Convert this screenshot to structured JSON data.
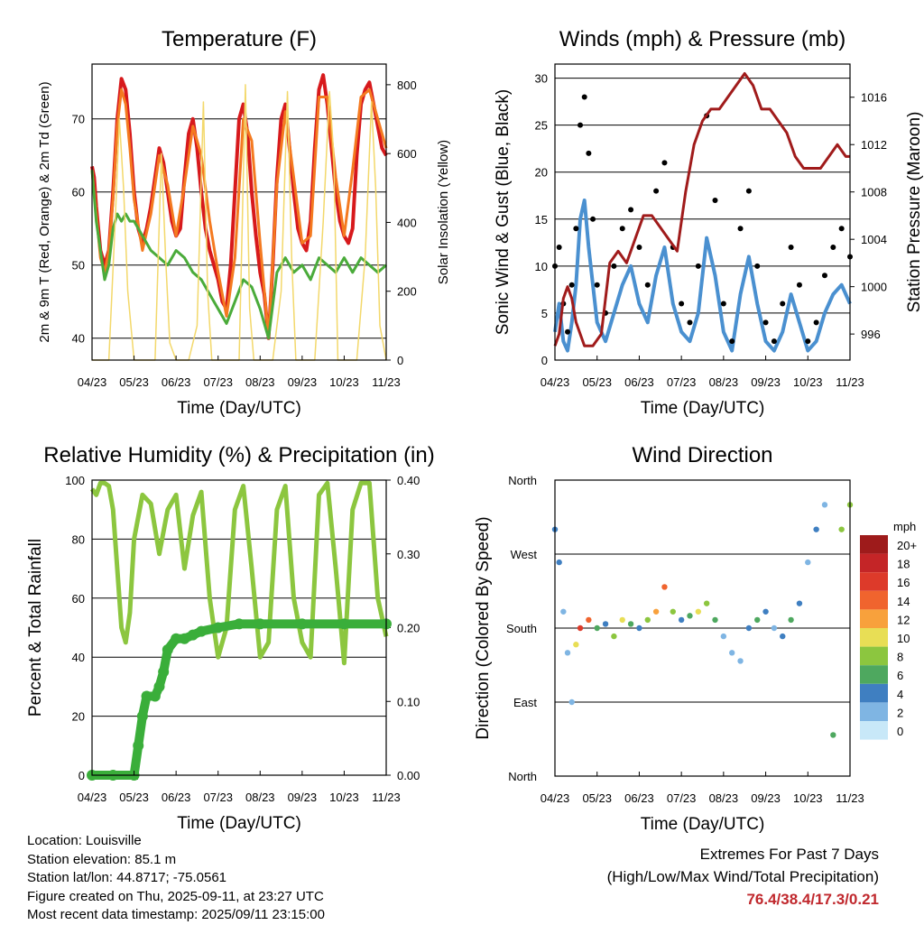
{
  "x_ticks": [
    "04/23",
    "05/23",
    "06/23",
    "07/23",
    "08/23",
    "09/23",
    "10/23",
    "11/23"
  ],
  "colors": {
    "temp2m": "#d7191c",
    "temp9m": "#f47a20",
    "dewpoint": "#4aab3a",
    "solar": "#f3d86b",
    "wind": "#4a90d0",
    "gust": "#000000",
    "pressure": "#a01b1b",
    "rh": "#8cc63f",
    "precip": "#3aae3a"
  },
  "chart_data": [
    {
      "type": "line",
      "title": "Temperature (F)",
      "xlabel": "Time (Day/UTC)",
      "ylabel": "2m & 9m T (Red, Orange) & 2m Td (Green)",
      "ylabel_right": "Solar Insolation (Yellow)",
      "ylim": [
        37,
        77.5
      ],
      "yticks": [
        40,
        50,
        60,
        70
      ],
      "ylim_right": [
        0,
        860
      ],
      "yticks_right": [
        0,
        200,
        400,
        600,
        800
      ],
      "series": [
        {
          "key": "temp2m",
          "x": [
            0,
            0.05,
            0.1,
            0.2,
            0.3,
            0.4,
            0.5,
            0.6,
            0.7,
            0.8,
            0.9,
            1.0,
            1.1,
            1.2,
            1.3,
            1.4,
            1.5,
            1.6,
            1.7,
            1.8,
            1.9,
            2.0,
            2.1,
            2.2,
            2.3,
            2.4,
            2.5,
            2.6,
            2.7,
            2.8,
            2.9,
            3.0,
            3.1,
            3.2,
            3.3,
            3.4,
            3.5,
            3.6,
            3.7,
            3.8,
            3.9,
            4.0,
            4.1,
            4.2,
            4.3,
            4.4,
            4.5,
            4.6,
            4.7,
            4.8,
            4.9,
            5.0,
            5.1,
            5.2,
            5.3,
            5.4,
            5.5,
            5.6,
            5.7,
            5.8,
            5.9,
            6.0,
            6.1,
            6.2,
            6.3,
            6.4,
            6.5,
            6.6,
            6.7,
            6.8,
            6.9,
            7.0
          ],
          "y": [
            63.5,
            62,
            58,
            52,
            50,
            52,
            60,
            70,
            75.5,
            74,
            68,
            60,
            55,
            53,
            55,
            58,
            62,
            66,
            64,
            60,
            56,
            54,
            55,
            62,
            68,
            70,
            66,
            60,
            55,
            52,
            50,
            48,
            45,
            44,
            50,
            60,
            70,
            72,
            68,
            60,
            54,
            49,
            46,
            40,
            50,
            62,
            70,
            72,
            66,
            60,
            55,
            53,
            52,
            56,
            66,
            74,
            76,
            72,
            66,
            60,
            56,
            54,
            53,
            55,
            65,
            72,
            74,
            75,
            72,
            69,
            66,
            65
          ]
        },
        {
          "key": "temp9m",
          "x": [
            0,
            0.1,
            0.2,
            0.3,
            0.4,
            0.5,
            0.6,
            0.7,
            0.8,
            0.9,
            1.0,
            1.2,
            1.4,
            1.6,
            1.8,
            2.0,
            2.2,
            2.4,
            2.6,
            2.8,
            3.0,
            3.2,
            3.4,
            3.6,
            3.8,
            4.0,
            4.2,
            4.4,
            4.6,
            4.8,
            5.0,
            5.2,
            5.4,
            5.6,
            5.8,
            6.0,
            6.2,
            6.4,
            6.6,
            6.8,
            7.0
          ],
          "y": [
            63,
            57,
            51,
            49,
            52,
            59,
            69,
            74,
            72,
            66,
            59,
            52,
            57,
            65,
            61,
            54,
            61,
            69,
            65,
            56,
            49,
            43,
            51,
            70,
            67,
            53,
            40,
            61,
            71,
            62,
            53,
            54,
            73,
            73,
            62,
            54,
            63,
            73,
            74,
            70,
            66
          ]
        },
        {
          "key": "dewpoint",
          "x": [
            0,
            0.1,
            0.2,
            0.3,
            0.4,
            0.5,
            0.6,
            0.7,
            0.8,
            0.9,
            1.0,
            1.2,
            1.4,
            1.6,
            1.8,
            2.0,
            2.2,
            2.4,
            2.6,
            2.8,
            3.0,
            3.2,
            3.4,
            3.6,
            3.8,
            4.0,
            4.2,
            4.4,
            4.6,
            4.8,
            5.0,
            5.2,
            5.4,
            5.6,
            5.8,
            6.0,
            6.2,
            6.4,
            6.6,
            6.8,
            7.0
          ],
          "y": [
            63,
            56,
            52,
            48,
            50,
            55,
            57,
            56,
            57,
            56,
            56,
            54,
            52,
            51,
            50,
            52,
            51,
            49,
            48,
            46,
            44,
            42,
            45,
            48,
            47,
            44,
            40,
            49,
            51,
            49,
            50,
            48,
            51,
            50,
            49,
            51,
            49,
            51,
            50,
            49,
            50
          ]
        },
        {
          "key": "solar",
          "x": [
            0,
            0.2,
            0.4,
            0.55,
            0.65,
            0.75,
            0.85,
            1.0,
            1.3,
            1.5,
            1.65,
            1.75,
            1.85,
            2.0,
            2.3,
            2.5,
            2.65,
            2.75,
            2.85,
            3.0,
            3.3,
            3.5,
            3.65,
            3.75,
            3.85,
            4.0,
            4.3,
            4.5,
            4.65,
            4.75,
            4.85,
            5.0,
            5.3,
            5.5,
            5.65,
            5.75,
            5.85,
            6.0,
            6.3,
            6.5,
            6.65,
            6.75,
            6.85,
            7.0
          ],
          "y": [
            0,
            0,
            0,
            400,
            700,
            500,
            200,
            0,
            0,
            0,
            600,
            300,
            50,
            0,
            0,
            100,
            750,
            200,
            0,
            0,
            0,
            0,
            800,
            150,
            0,
            0,
            0,
            200,
            780,
            300,
            0,
            0,
            0,
            400,
            780,
            600,
            0,
            0,
            0,
            300,
            750,
            500,
            100,
            0
          ]
        }
      ]
    },
    {
      "type": "scatter",
      "title": "Winds (mph) & Pressure (mb)",
      "xlabel": "Time (Day/UTC)",
      "ylabel": "Sonic Wind & Gust (Blue, Black)",
      "ylabel_right": "Station Pressure (Maroon)",
      "ylim": [
        0,
        31.5
      ],
      "yticks": [
        0,
        5,
        10,
        15,
        20,
        25,
        30
      ],
      "ylim_right": [
        993.8,
        1018.8
      ],
      "yticks_right": [
        996,
        1000,
        1004,
        1008,
        1012,
        1016
      ],
      "series": [
        {
          "key": "wind",
          "x": [
            0,
            0.1,
            0.2,
            0.3,
            0.4,
            0.5,
            0.6,
            0.7,
            0.8,
            0.9,
            1.0,
            1.2,
            1.4,
            1.6,
            1.8,
            2.0,
            2.2,
            2.4,
            2.6,
            2.8,
            3.0,
            3.2,
            3.4,
            3.6,
            3.8,
            4.0,
            4.2,
            4.4,
            4.6,
            4.8,
            5.0,
            5.2,
            5.4,
            5.6,
            5.8,
            6.0,
            6.2,
            6.4,
            6.6,
            6.8,
            7.0
          ],
          "y": [
            3,
            6,
            2,
            1,
            4,
            8,
            15,
            17,
            12,
            8,
            4,
            2,
            5,
            8,
            10,
            6,
            4,
            9,
            12,
            6,
            3,
            2,
            5,
            13,
            9,
            3,
            1,
            7,
            11,
            6,
            2,
            1,
            3,
            7,
            4,
            1,
            2,
            5,
            7,
            8,
            6
          ]
        },
        {
          "key": "gust",
          "x": [
            0,
            0.1,
            0.2,
            0.3,
            0.4,
            0.5,
            0.6,
            0.7,
            0.8,
            0.9,
            1.0,
            1.2,
            1.4,
            1.6,
            1.8,
            2.0,
            2.2,
            2.4,
            2.6,
            2.8,
            3.0,
            3.2,
            3.4,
            3.6,
            3.8,
            4.0,
            4.2,
            4.4,
            4.6,
            4.8,
            5.0,
            5.2,
            5.4,
            5.6,
            5.8,
            6.0,
            6.2,
            6.4,
            6.6,
            6.8,
            7.0
          ],
          "y": [
            10,
            12,
            6,
            3,
            8,
            14,
            25,
            28,
            22,
            15,
            8,
            5,
            10,
            14,
            16,
            12,
            8,
            18,
            21,
            12,
            6,
            4,
            10,
            26,
            17,
            6,
            2,
            14,
            18,
            10,
            4,
            2,
            6,
            12,
            8,
            2,
            4,
            9,
            12,
            14,
            11
          ]
        },
        {
          "key": "pressure",
          "x": [
            0,
            0.1,
            0.2,
            0.3,
            0.4,
            0.5,
            0.7,
            0.9,
            1.1,
            1.3,
            1.5,
            1.7,
            1.9,
            2.1,
            2.3,
            2.5,
            2.7,
            2.9,
            3.1,
            3.3,
            3.5,
            3.7,
            3.9,
            4.1,
            4.3,
            4.5,
            4.7,
            4.9,
            5.1,
            5.3,
            5.5,
            5.7,
            5.9,
            6.1,
            6.3,
            6.5,
            6.7,
            6.9,
            7.0
          ],
          "y": [
            995,
            996,
            999,
            1000,
            999,
            997,
            995,
            995,
            996,
            1002,
            1003,
            1002,
            1004,
            1006,
            1006,
            1005,
            1004,
            1003,
            1008,
            1012,
            1014,
            1015,
            1015,
            1016,
            1017,
            1018,
            1017,
            1015,
            1015,
            1014,
            1013,
            1011,
            1010,
            1010,
            1010,
            1011,
            1012,
            1011,
            1011
          ]
        }
      ]
    },
    {
      "type": "line",
      "title": "Relative Humidity (%) & Precipitation (in)",
      "xlabel": "Time (Day/UTC)",
      "ylabel": "Percent & Total Rainfall",
      "ylim": [
        0,
        100
      ],
      "yticks": [
        0,
        20,
        40,
        60,
        80,
        100
      ],
      "ylim_right": [
        0,
        0.4
      ],
      "yticks_right": [
        "0.00",
        "0.10",
        "0.20",
        "0.30",
        "0.40"
      ],
      "series": [
        {
          "key": "rh",
          "x": [
            0,
            0.1,
            0.2,
            0.3,
            0.4,
            0.5,
            0.6,
            0.7,
            0.8,
            0.9,
            1.0,
            1.2,
            1.4,
            1.6,
            1.8,
            2.0,
            2.2,
            2.4,
            2.6,
            2.8,
            3.0,
            3.2,
            3.4,
            3.6,
            3.8,
            4.0,
            4.2,
            4.4,
            4.6,
            4.8,
            5.0,
            5.2,
            5.4,
            5.6,
            5.8,
            6.0,
            6.2,
            6.4,
            6.6,
            6.8,
            7.0
          ],
          "y": [
            97,
            95,
            99,
            99,
            98,
            90,
            70,
            50,
            45,
            55,
            80,
            95,
            92,
            75,
            90,
            95,
            70,
            88,
            96,
            60,
            40,
            50,
            90,
            98,
            70,
            40,
            45,
            90,
            98,
            60,
            45,
            40,
            95,
            99,
            70,
            38,
            90,
            99,
            99,
            60,
            47
          ]
        },
        {
          "key": "precip",
          "x": [
            0,
            0.5,
            1.0,
            1.1,
            1.2,
            1.3,
            1.5,
            1.6,
            1.7,
            1.8,
            2.0,
            2.2,
            2.4,
            2.6,
            3.0,
            3.5,
            4.0,
            5.0,
            6.0,
            7.0
          ],
          "y": [
            0,
            0,
            0,
            0.04,
            0.08,
            0.107,
            0.107,
            0.12,
            0.14,
            0.17,
            0.185,
            0.185,
            0.19,
            0.195,
            0.2,
            0.205,
            0.205,
            0.205,
            0.205,
            0.205
          ]
        }
      ]
    },
    {
      "type": "scatter",
      "title": "Wind Direction",
      "xlabel": "Time (Day/UTC)",
      "ylabel": "Direction (Colored By Speed)",
      "ylim": [
        0,
        360
      ],
      "ytick_labels": [
        "North",
        "East",
        "South",
        "West",
        "North"
      ],
      "legend_title": "mph",
      "legend_labels": [
        "20+",
        "18",
        "16",
        "14",
        "12",
        "10",
        "8",
        "6",
        "4",
        "2",
        "0"
      ],
      "legend_colors": [
        "#9e1b1b",
        "#c42527",
        "#dd3a2a",
        "#f0642e",
        "#f8a13c",
        "#e8de55",
        "#8cc63f",
        "#4ea85f",
        "#3f7fc1",
        "#7fb5e3",
        "#c8e8f8"
      ],
      "series": [
        {
          "key": "wdir",
          "x": [
            0,
            0.1,
            0.2,
            0.3,
            0.4,
            0.5,
            0.6,
            0.8,
            1.0,
            1.2,
            1.4,
            1.6,
            1.8,
            2.0,
            2.2,
            2.4,
            2.6,
            2.8,
            3.0,
            3.2,
            3.4,
            3.6,
            3.8,
            4.0,
            4.2,
            4.4,
            4.6,
            4.8,
            5.0,
            5.2,
            5.4,
            5.6,
            5.8,
            6.0,
            6.2,
            6.4,
            6.6,
            6.8,
            7.0
          ],
          "y": [
            300,
            260,
            200,
            150,
            90,
            160,
            180,
            190,
            180,
            185,
            170,
            190,
            185,
            180,
            190,
            200,
            230,
            200,
            190,
            195,
            200,
            210,
            190,
            170,
            150,
            140,
            180,
            190,
            200,
            180,
            170,
            190,
            210,
            260,
            300,
            330,
            50,
            300,
            330
          ],
          "speed": [
            3,
            4,
            2,
            1,
            2,
            10,
            16,
            14,
            6,
            4,
            8,
            10,
            6,
            4,
            8,
            12,
            14,
            8,
            4,
            5,
            9,
            7,
            5,
            2,
            1,
            2,
            4,
            6,
            3,
            2,
            4,
            6,
            3,
            2,
            4,
            1,
            6,
            8,
            7
          ]
        }
      ]
    }
  ],
  "info": {
    "location": "Location: Louisville",
    "elevation": "Station elevation: 85.1 m",
    "latlon": "Station lat/lon: 44.8717; -75.0561",
    "created": "Figure created on Thu, 2025-09-11, at 23:27 UTC",
    "recent": "Most recent data timestamp: 2025/09/11 23:15:00"
  },
  "extremes": {
    "line1": "Extremes For Past 7 Days",
    "line2": "(High/Low/Max Wind/Total Precipitation)",
    "values": "76.4/38.4/17.3/0.21"
  }
}
